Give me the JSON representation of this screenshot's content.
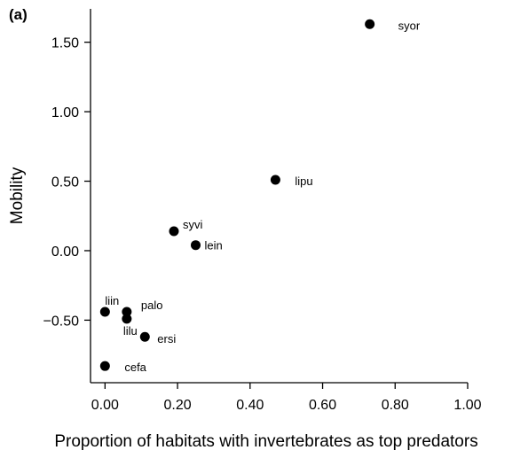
{
  "chart_data": {
    "type": "scatter",
    "panel_label": "(a)",
    "title": "",
    "xlabel": "Proportion of habitats with invertebrates as top predators",
    "ylabel": "Mobility",
    "xlim": [
      -0.04,
      1.0
    ],
    "ylim": [
      -0.95,
      1.74
    ],
    "x_ticks": [
      0.0,
      0.2,
      0.4,
      0.6,
      0.8,
      1.0
    ],
    "x_tick_labels": [
      "0.00",
      "0.20",
      "0.40",
      "0.60",
      "0.80",
      "1.00"
    ],
    "y_ticks": [
      -0.5,
      0.0,
      0.5,
      1.0,
      1.5
    ],
    "y_tick_labels": [
      "−0.50",
      "0.00",
      "0.50",
      "1.00",
      "1.50"
    ],
    "grid": false,
    "marker_color": "#000000",
    "points": [
      {
        "label": "syor",
        "x": 0.73,
        "y": 1.63
      },
      {
        "label": "lipu",
        "x": 0.47,
        "y": 0.51
      },
      {
        "label": "syvi",
        "x": 0.19,
        "y": 0.14
      },
      {
        "label": "lein",
        "x": 0.25,
        "y": 0.04
      },
      {
        "label": "liin",
        "x": 0.0,
        "y": -0.44
      },
      {
        "label": "palo",
        "x": 0.06,
        "y": -0.44
      },
      {
        "label": "lilu",
        "x": 0.06,
        "y": -0.49
      },
      {
        "label": "ersi",
        "x": 0.11,
        "y": -0.62
      },
      {
        "label": "cefa",
        "x": 0.0,
        "y": -0.83
      }
    ]
  }
}
